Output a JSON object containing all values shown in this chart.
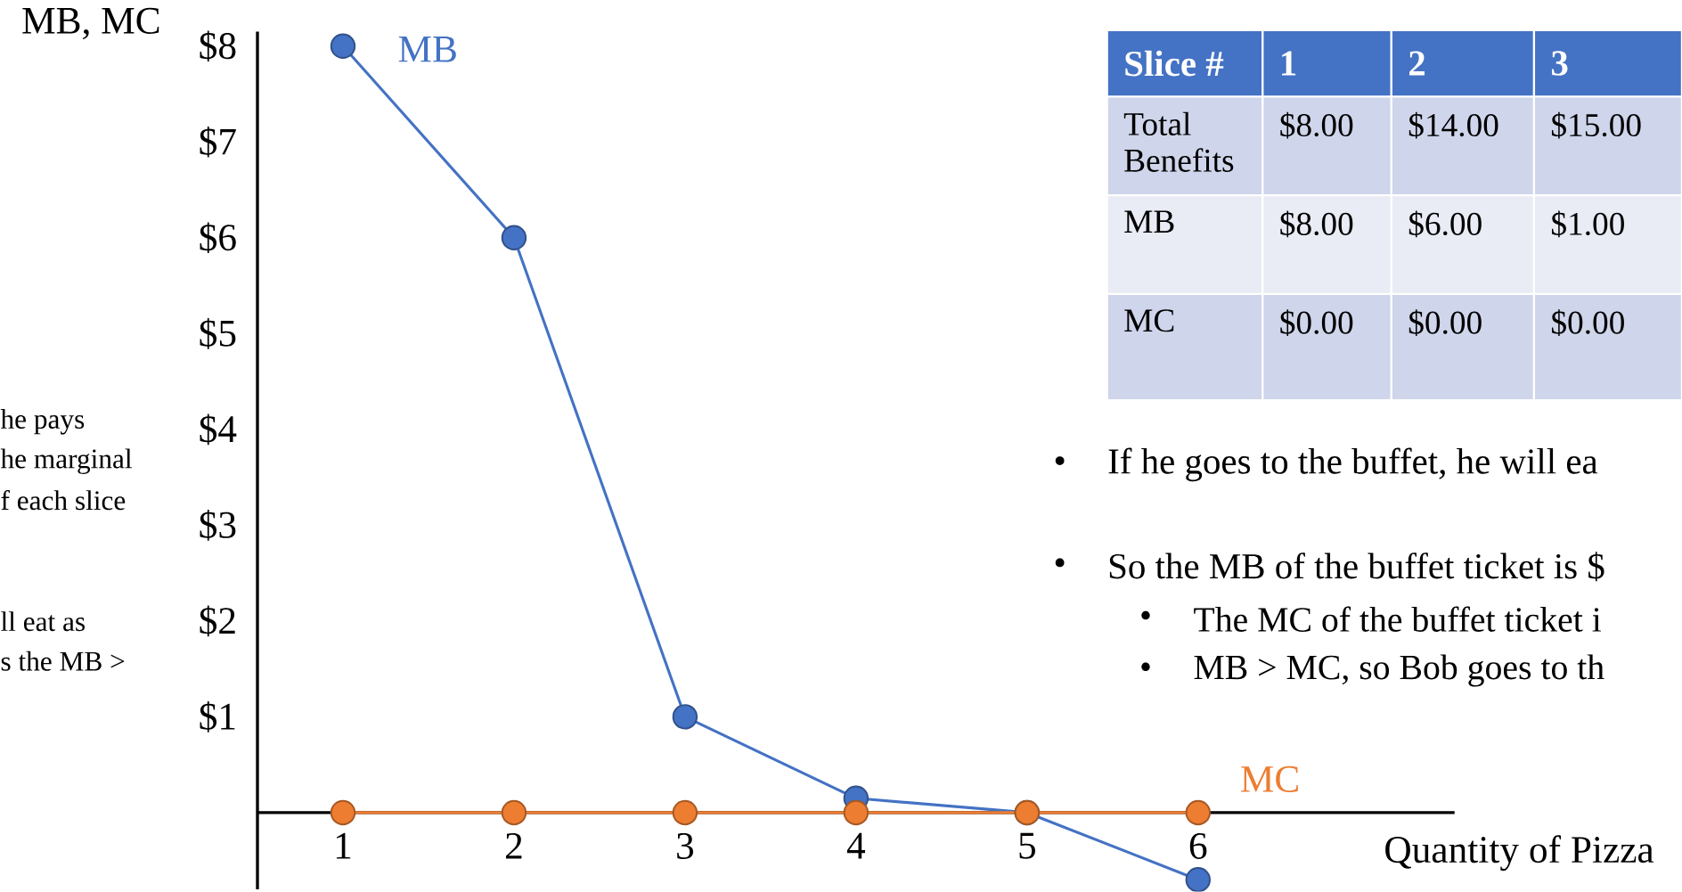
{
  "chart_data": {
    "type": "line",
    "xlabel": "Quantity of Pizza",
    "ylabel": "MB, MC",
    "x": [
      1,
      2,
      3,
      4,
      5,
      6
    ],
    "series": [
      {
        "name": "MB",
        "color": "#4472c4",
        "values": [
          8,
          6,
          1,
          0.15,
          0,
          -0.7
        ]
      },
      {
        "name": "MC",
        "color": "#ed7d31",
        "values": [
          0,
          0,
          0,
          0,
          0,
          0
        ]
      }
    ],
    "xlim": [
      0.5,
      7.5
    ],
    "ylim": [
      -0.8,
      8.15
    ],
    "xticks": [
      1,
      2,
      3,
      4,
      5,
      6
    ],
    "yticks": [
      {
        "value": 1,
        "label": "$1"
      },
      {
        "value": 2,
        "label": "$2"
      },
      {
        "value": 3,
        "label": "$3"
      },
      {
        "value": 4,
        "label": "$4"
      },
      {
        "value": 5,
        "label": "$5"
      },
      {
        "value": 6,
        "label": "$6"
      },
      {
        "value": 7,
        "label": "$7"
      },
      {
        "value": 8,
        "label": "$8"
      }
    ],
    "marker": "circle",
    "line_style": "solid",
    "annotations": [
      "he pays",
      "he marginal",
      "f each slice",
      "ll eat as",
      "s the MB >",
      "Slice #",
      "1",
      "2",
      "3",
      "Total Benefits",
      "$8.00",
      "$14.00",
      "$15.00",
      "MB",
      "$8.00",
      "$6.00",
      "$1.00",
      "MC",
      "$0.00",
      "$0.00",
      "$0.00",
      "If he goes to the buffet, he will ea",
      "So the MB of the buffet ticket is $",
      "The MC of the buffet ticket i",
      "MB > MC, so Bob goes to th",
      "•",
      "•",
      "•",
      "•"
    ]
  }
}
